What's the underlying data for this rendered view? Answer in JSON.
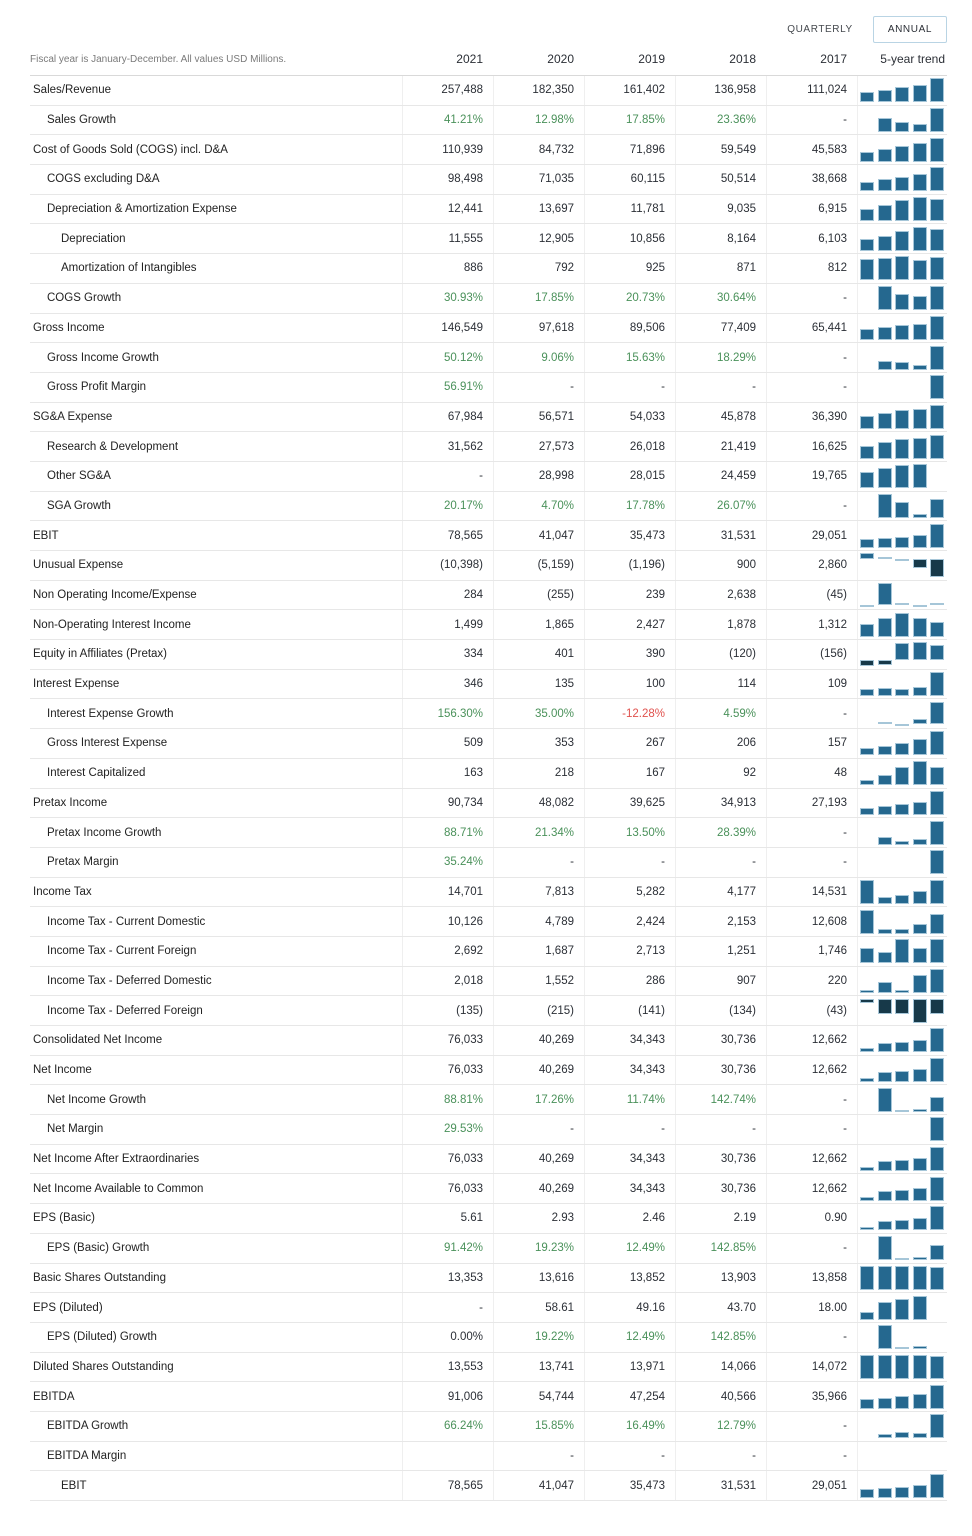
{
  "controls": {
    "quarterly_label": "QUARTERLY",
    "annual_label": "ANNUAL",
    "selected": "ANNUAL"
  },
  "colors": {
    "bar_positive": "#25688f",
    "bar_negative": "#173949",
    "growth_green": "#4a915a",
    "decline_red": "#e0524e",
    "annual_button_border": "#b9d4e4"
  },
  "table": {
    "note": "Fiscal year is January-December. All values USD Millions.",
    "columns": [
      "2021",
      "2020",
      "2019",
      "2018",
      "2017"
    ],
    "trend_label": "5-year trend",
    "rows": [
      {
        "label": "Sales/Revenue",
        "indent": 0,
        "values": [
          "257,488",
          "182,350",
          "161,402",
          "136,958",
          "111,024"
        ],
        "trend": [
          111024,
          136958,
          161402,
          182350,
          257488
        ]
      },
      {
        "label": "Sales Growth",
        "indent": 1,
        "values": [
          "41.21%",
          "12.98%",
          "17.85%",
          "23.36%",
          "-"
        ],
        "styles": [
          "g",
          "g",
          "g",
          "g",
          ""
        ],
        "trend": [
          null,
          23.36,
          17.85,
          12.98,
          41.21
        ]
      },
      {
        "label": "Cost of Goods Sold (COGS) incl. D&A",
        "indent": 0,
        "values": [
          "110,939",
          "84,732",
          "71,896",
          "59,549",
          "45,583"
        ],
        "trend": [
          45583,
          59549,
          71896,
          84732,
          110939
        ]
      },
      {
        "label": "COGS excluding D&A",
        "indent": 1,
        "values": [
          "98,498",
          "71,035",
          "60,115",
          "50,514",
          "38,668"
        ],
        "trend": [
          38668,
          50514,
          60115,
          71035,
          98498
        ]
      },
      {
        "label": "Depreciation & Amortization Expense",
        "indent": 1,
        "values": [
          "12,441",
          "13,697",
          "11,781",
          "9,035",
          "6,915"
        ],
        "trend": [
          6915,
          9035,
          11781,
          13697,
          12441
        ]
      },
      {
        "label": "Depreciation",
        "indent": 2,
        "values": [
          "11,555",
          "12,905",
          "10,856",
          "8,164",
          "6,103"
        ],
        "trend": [
          6103,
          8164,
          10856,
          12905,
          11555
        ]
      },
      {
        "label": "Amortization of Intangibles",
        "indent": 2,
        "values": [
          "886",
          "792",
          "925",
          "871",
          "812"
        ],
        "trend": [
          812,
          871,
          925,
          792,
          886
        ]
      },
      {
        "label": "COGS Growth",
        "indent": 1,
        "values": [
          "30.93%",
          "17.85%",
          "20.73%",
          "30.64%",
          "-"
        ],
        "styles": [
          "g",
          "g",
          "g",
          "g",
          ""
        ],
        "trend": [
          null,
          30.64,
          20.73,
          17.85,
          30.93
        ]
      },
      {
        "label": "Gross Income",
        "indent": 0,
        "values": [
          "146,549",
          "97,618",
          "89,506",
          "77,409",
          "65,441"
        ],
        "trend": [
          65441,
          77409,
          89506,
          97618,
          146549
        ]
      },
      {
        "label": "Gross Income Growth",
        "indent": 1,
        "values": [
          "50.12%",
          "9.06%",
          "15.63%",
          "18.29%",
          "-"
        ],
        "styles": [
          "g",
          "g",
          "g",
          "g",
          ""
        ],
        "trend": [
          null,
          18.29,
          15.63,
          9.06,
          50.12
        ]
      },
      {
        "label": "Gross Profit Margin",
        "indent": 1,
        "values": [
          "56.91%",
          "-",
          "-",
          "-",
          "-"
        ],
        "styles": [
          "g",
          "",
          "",
          "",
          ""
        ],
        "trend": [
          null,
          null,
          null,
          null,
          56.91
        ]
      },
      {
        "label": "SG&A Expense",
        "indent": 0,
        "values": [
          "67,984",
          "56,571",
          "54,033",
          "45,878",
          "36,390"
        ],
        "trend": [
          36390,
          45878,
          54033,
          56571,
          67984
        ]
      },
      {
        "label": "Research & Development",
        "indent": 1,
        "values": [
          "31,562",
          "27,573",
          "26,018",
          "21,419",
          "16,625"
        ],
        "trend": [
          16625,
          21419,
          26018,
          27573,
          31562
        ]
      },
      {
        "label": "Other SG&A",
        "indent": 1,
        "values": [
          "-",
          "28,998",
          "28,015",
          "24,459",
          "19,765"
        ],
        "trend": [
          19765,
          24459,
          28015,
          28998,
          null
        ]
      },
      {
        "label": "SGA Growth",
        "indent": 1,
        "values": [
          "20.17%",
          "4.70%",
          "17.78%",
          "26.07%",
          "-"
        ],
        "styles": [
          "g",
          "g",
          "g",
          "g",
          ""
        ],
        "trend": [
          null,
          26.07,
          17.78,
          4.7,
          20.17
        ]
      },
      {
        "label": "EBIT",
        "indent": 0,
        "values": [
          "78,565",
          "41,047",
          "35,473",
          "31,531",
          "29,051"
        ],
        "trend": [
          29051,
          31531,
          35473,
          41047,
          78565
        ]
      },
      {
        "label": "Unusual Expense",
        "indent": 0,
        "values": [
          "(10,398)",
          "(5,159)",
          "(1,196)",
          "900",
          "2,860"
        ],
        "trend": [
          2860,
          900,
          -1196,
          -5159,
          -10398
        ]
      },
      {
        "label": "Non Operating Income/Expense",
        "indent": 0,
        "values": [
          "284",
          "(255)",
          "239",
          "2,638",
          "(45)"
        ],
        "trend": [
          -45,
          2638,
          239,
          -255,
          284
        ]
      },
      {
        "label": "Non-Operating Interest Income",
        "indent": 0,
        "values": [
          "1,499",
          "1,865",
          "2,427",
          "1,878",
          "1,312"
        ],
        "trend": [
          1312,
          1878,
          2427,
          1865,
          1499
        ]
      },
      {
        "label": "Equity in Affiliates (Pretax)",
        "indent": 0,
        "values": [
          "334",
          "401",
          "390",
          "(120)",
          "(156)"
        ],
        "trend": [
          -156,
          -120,
          390,
          401,
          334
        ]
      },
      {
        "label": "Interest Expense",
        "indent": 0,
        "values": [
          "346",
          "135",
          "100",
          "114",
          "109"
        ],
        "trend": [
          109,
          114,
          100,
          135,
          346
        ]
      },
      {
        "label": "Interest Expense Growth",
        "indent": 1,
        "values": [
          "156.30%",
          "35.00%",
          "-12.28%",
          "4.59%",
          "-"
        ],
        "styles": [
          "g",
          "g",
          "r",
          "g",
          ""
        ],
        "trend": [
          null,
          4.59,
          -12.28,
          35.0,
          156.3
        ]
      },
      {
        "label": "Gross Interest Expense",
        "indent": 1,
        "values": [
          "509",
          "353",
          "267",
          "206",
          "157"
        ],
        "trend": [
          157,
          206,
          267,
          353,
          509
        ]
      },
      {
        "label": "Interest Capitalized",
        "indent": 1,
        "values": [
          "163",
          "218",
          "167",
          "92",
          "48"
        ],
        "trend": [
          48,
          92,
          167,
          218,
          163
        ]
      },
      {
        "label": "Pretax Income",
        "indent": 0,
        "values": [
          "90,734",
          "48,082",
          "39,625",
          "34,913",
          "27,193"
        ],
        "trend": [
          27193,
          34913,
          39625,
          48082,
          90734
        ]
      },
      {
        "label": "Pretax Income Growth",
        "indent": 1,
        "values": [
          "88.71%",
          "21.34%",
          "13.50%",
          "28.39%",
          "-"
        ],
        "styles": [
          "g",
          "g",
          "g",
          "g",
          ""
        ],
        "trend": [
          null,
          28.39,
          13.5,
          21.34,
          88.71
        ]
      },
      {
        "label": "Pretax Margin",
        "indent": 1,
        "values": [
          "35.24%",
          "-",
          "-",
          "-",
          "-"
        ],
        "styles": [
          "g",
          "",
          "",
          "",
          ""
        ],
        "trend": [
          null,
          null,
          null,
          null,
          35.24
        ]
      },
      {
        "label": "Income Tax",
        "indent": 0,
        "values": [
          "14,701",
          "7,813",
          "5,282",
          "4,177",
          "14,531"
        ],
        "trend": [
          14531,
          4177,
          5282,
          7813,
          14701
        ]
      },
      {
        "label": "Income Tax - Current Domestic",
        "indent": 1,
        "values": [
          "10,126",
          "4,789",
          "2,424",
          "2,153",
          "12,608"
        ],
        "trend": [
          12608,
          2153,
          2424,
          4789,
          10126
        ]
      },
      {
        "label": "Income Tax - Current Foreign",
        "indent": 1,
        "values": [
          "2,692",
          "1,687",
          "2,713",
          "1,251",
          "1,746"
        ],
        "trend": [
          1746,
          1251,
          2713,
          1687,
          2692
        ]
      },
      {
        "label": "Income Tax - Deferred Domestic",
        "indent": 1,
        "values": [
          "2,018",
          "1,552",
          "286",
          "907",
          "220"
        ],
        "trend": [
          220,
          907,
          286,
          1552,
          2018
        ]
      },
      {
        "label": "Income Tax - Deferred Foreign",
        "indent": 1,
        "values": [
          "(135)",
          "(215)",
          "(141)",
          "(134)",
          "(43)"
        ],
        "trend": [
          -43,
          -134,
          -141,
          -215,
          -135
        ]
      },
      {
        "label": "Consolidated Net Income",
        "indent": 0,
        "values": [
          "76,033",
          "40,269",
          "34,343",
          "30,736",
          "12,662"
        ],
        "trend": [
          12662,
          30736,
          34343,
          40269,
          76033
        ]
      },
      {
        "label": "Net Income",
        "indent": 0,
        "values": [
          "76,033",
          "40,269",
          "34,343",
          "30,736",
          "12,662"
        ],
        "trend": [
          12662,
          30736,
          34343,
          40269,
          76033
        ]
      },
      {
        "label": "Net Income Growth",
        "indent": 1,
        "values": [
          "88.81%",
          "17.26%",
          "11.74%",
          "142.74%",
          "-"
        ],
        "styles": [
          "g",
          "g",
          "g",
          "g",
          ""
        ],
        "trend": [
          null,
          142.74,
          11.74,
          17.26,
          88.81
        ]
      },
      {
        "label": "Net Margin",
        "indent": 1,
        "values": [
          "29.53%",
          "-",
          "-",
          "-",
          "-"
        ],
        "styles": [
          "g",
          "",
          "",
          "",
          ""
        ],
        "trend": [
          null,
          null,
          null,
          null,
          29.53
        ]
      },
      {
        "label": "Net Income After Extraordinaries",
        "indent": 0,
        "values": [
          "76,033",
          "40,269",
          "34,343",
          "30,736",
          "12,662"
        ],
        "trend": [
          12662,
          30736,
          34343,
          40269,
          76033
        ]
      },
      {
        "label": "Net Income Available to Common",
        "indent": 0,
        "values": [
          "76,033",
          "40,269",
          "34,343",
          "30,736",
          "12,662"
        ],
        "trend": [
          12662,
          30736,
          34343,
          40269,
          76033
        ]
      },
      {
        "label": "EPS (Basic)",
        "indent": 0,
        "values": [
          "5.61",
          "2.93",
          "2.46",
          "2.19",
          "0.90"
        ],
        "trend": [
          0.9,
          2.19,
          2.46,
          2.93,
          5.61
        ]
      },
      {
        "label": "EPS (Basic) Growth",
        "indent": 1,
        "values": [
          "91.42%",
          "19.23%",
          "12.49%",
          "142.85%",
          "-"
        ],
        "styles": [
          "g",
          "g",
          "g",
          "g",
          ""
        ],
        "trend": [
          null,
          142.85,
          12.49,
          19.23,
          91.42
        ]
      },
      {
        "label": "Basic Shares Outstanding",
        "indent": 0,
        "values": [
          "13,353",
          "13,616",
          "13,852",
          "13,903",
          "13,858"
        ],
        "trend": [
          13858,
          13903,
          13852,
          13616,
          13353
        ]
      },
      {
        "label": "EPS (Diluted)",
        "indent": 0,
        "values": [
          "-",
          "58.61",
          "49.16",
          "43.70",
          "18.00"
        ],
        "trend": [
          18.0,
          43.7,
          49.16,
          58.61,
          null
        ]
      },
      {
        "label": "EPS (Diluted) Growth",
        "indent": 1,
        "values": [
          "0.00%",
          "19.22%",
          "12.49%",
          "142.85%",
          "-"
        ],
        "styles": [
          "",
          "g",
          "g",
          "g",
          ""
        ],
        "trend": [
          null,
          142.85,
          12.49,
          19.22,
          0
        ]
      },
      {
        "label": "Diluted Shares Outstanding",
        "indent": 0,
        "values": [
          "13,553",
          "13,741",
          "13,971",
          "14,066",
          "14,072"
        ],
        "trend": [
          14072,
          14066,
          13971,
          13741,
          13553
        ]
      },
      {
        "label": "EBITDA",
        "indent": 0,
        "values": [
          "91,006",
          "54,744",
          "47,254",
          "40,566",
          "35,966"
        ],
        "trend": [
          35966,
          40566,
          47254,
          54744,
          91006
        ]
      },
      {
        "label": "EBITDA Growth",
        "indent": 1,
        "values": [
          "66.24%",
          "15.85%",
          "16.49%",
          "12.79%",
          "-"
        ],
        "styles": [
          "g",
          "g",
          "g",
          "g",
          ""
        ],
        "trend": [
          null,
          12.79,
          16.49,
          15.85,
          66.24
        ]
      },
      {
        "label": "EBITDA Margin",
        "indent": 1,
        "values": [
          "",
          "-",
          "-",
          "-",
          "-"
        ],
        "trend": [
          null,
          null,
          null,
          null,
          null
        ]
      },
      {
        "label": "EBIT",
        "indent": 2,
        "values": [
          "78,565",
          "41,047",
          "35,473",
          "31,531",
          "29,051"
        ],
        "trend": [
          29051,
          31531,
          35473,
          41047,
          78565
        ]
      }
    ]
  }
}
